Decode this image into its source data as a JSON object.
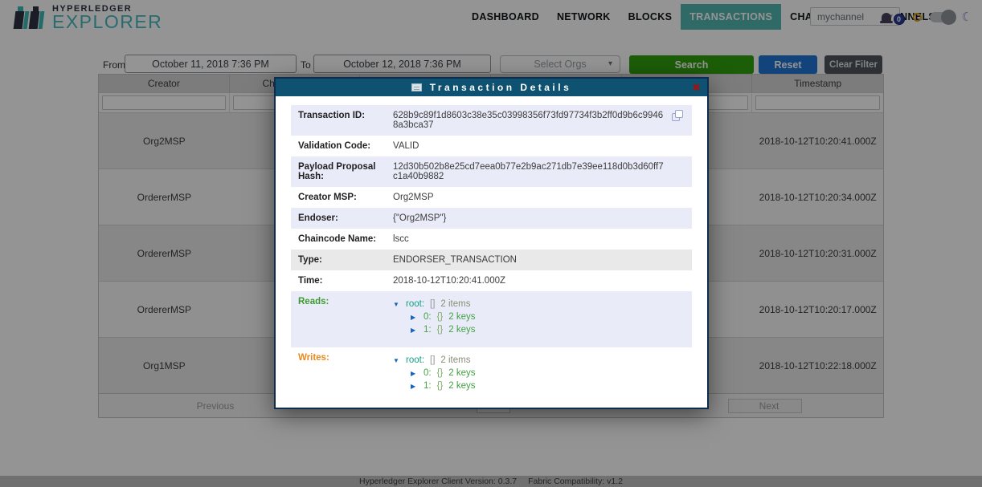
{
  "header": {
    "logo_top": "HYPERLEDGER",
    "logo_bottom": "EXPLORER",
    "nav": [
      {
        "label": "DASHBOARD"
      },
      {
        "label": "NETWORK"
      },
      {
        "label": "BLOCKS"
      },
      {
        "label": "TRANSACTIONS",
        "active": true
      },
      {
        "label": "CHAINCODES"
      },
      {
        "label": "CHANNELS"
      }
    ],
    "channel_select": {
      "value": "mychannel",
      "caret": "▾"
    },
    "notifications": {
      "count": "0"
    },
    "theme": {
      "moon_glyph": "☾"
    }
  },
  "filters": {
    "from_label": "From",
    "from_value": "October 11, 2018 7:36 PM",
    "to_label": "To",
    "to_value": "October 12, 2018 7:36 PM",
    "select_orgs_placeholder": "Select Orgs",
    "orgs_caret": "▾",
    "search_label": "Search",
    "reset_label": "Reset",
    "clear_filter_label": "Clear Filter"
  },
  "table": {
    "columns": [
      "Creator",
      "Channel Name",
      "",
      "",
      "",
      "Timestamp"
    ],
    "rows": [
      {
        "creator": "Org2MSP",
        "timestamp": "2018-10-12T10:20:41.000Z"
      },
      {
        "creator": "OrdererMSP",
        "timestamp": "2018-10-12T10:20:34.000Z"
      },
      {
        "creator": "OrdererMSP",
        "timestamp": "2018-10-12T10:20:31.000Z"
      },
      {
        "creator": "OrdererMSP",
        "timestamp": "2018-10-12T10:20:17.000Z"
      },
      {
        "creator": "Org1MSP",
        "timestamp": "2018-10-12T10:22:18.000Z"
      }
    ],
    "pagination": {
      "previous": "Previous",
      "next": "Next"
    }
  },
  "modal": {
    "title": "Transaction Details",
    "close_glyph": "✖",
    "fields": [
      {
        "label": "Transaction ID:",
        "value": "628b9c89f1d8603c38e35c03998356f73fd97734f3b2ff0d9b6c99468a3bca37"
      },
      {
        "label": "Validation Code:",
        "value": "VALID"
      },
      {
        "label": "Payload Proposal Hash:",
        "value": "12d30b502b8e25cd7eea0b77e2b9ac271db7e39ee118d0b3d60ff7c1a40b9882"
      },
      {
        "label": "Creator MSP:",
        "value": "Org2MSP"
      },
      {
        "label": "Endoser:",
        "value": "{\"Org2MSP\"}"
      },
      {
        "label": "Chaincode Name:",
        "value": "lscc"
      },
      {
        "label": "Type:",
        "value": "ENDORSER_TRANSACTION"
      },
      {
        "label": "Time:",
        "value": "2018-10-12T10:20:41.000Z"
      }
    ],
    "reads": {
      "label": "Reads:",
      "tree": [
        {
          "arrow": "▼",
          "key": "root:",
          "bracket": "[]",
          "count": "2 items"
        },
        {
          "arrow": "▶",
          "key": "0:",
          "bracket": "{}",
          "count": "2 keys"
        },
        {
          "arrow": "▶",
          "key": "1:",
          "bracket": "{}",
          "count": "2 keys"
        }
      ]
    },
    "writes": {
      "label": "Writes:",
      "tree": [
        {
          "arrow": "▼",
          "key": "root:",
          "bracket": "[]",
          "count": "2 items"
        },
        {
          "arrow": "▶",
          "key": "0:",
          "bracket": "{}",
          "count": "2 keys"
        },
        {
          "arrow": "▶",
          "key": "1:",
          "bracket": "{}",
          "count": "2 keys"
        }
      ]
    }
  },
  "footer": {
    "version": "Hyperledger Explorer Client Version: 0.3.7",
    "compat": "Fabric Compatibility: v1.2"
  },
  "colors": {
    "nav_active_teal": "#52b7b0",
    "logo_teal": "#46bac0",
    "search_green": "#31a00e",
    "reset_blue": "#1f74d2",
    "clear_filter_gray": "#4e555c",
    "modal_header_teal": "#0f5170",
    "modal_close_red": "#9c1414",
    "reads_green": "#3d9a30",
    "writes_orange": "#e8891c",
    "notification_badge_blue": "#2c3b96",
    "row_highlight_lavender": "#e9ecf8"
  }
}
